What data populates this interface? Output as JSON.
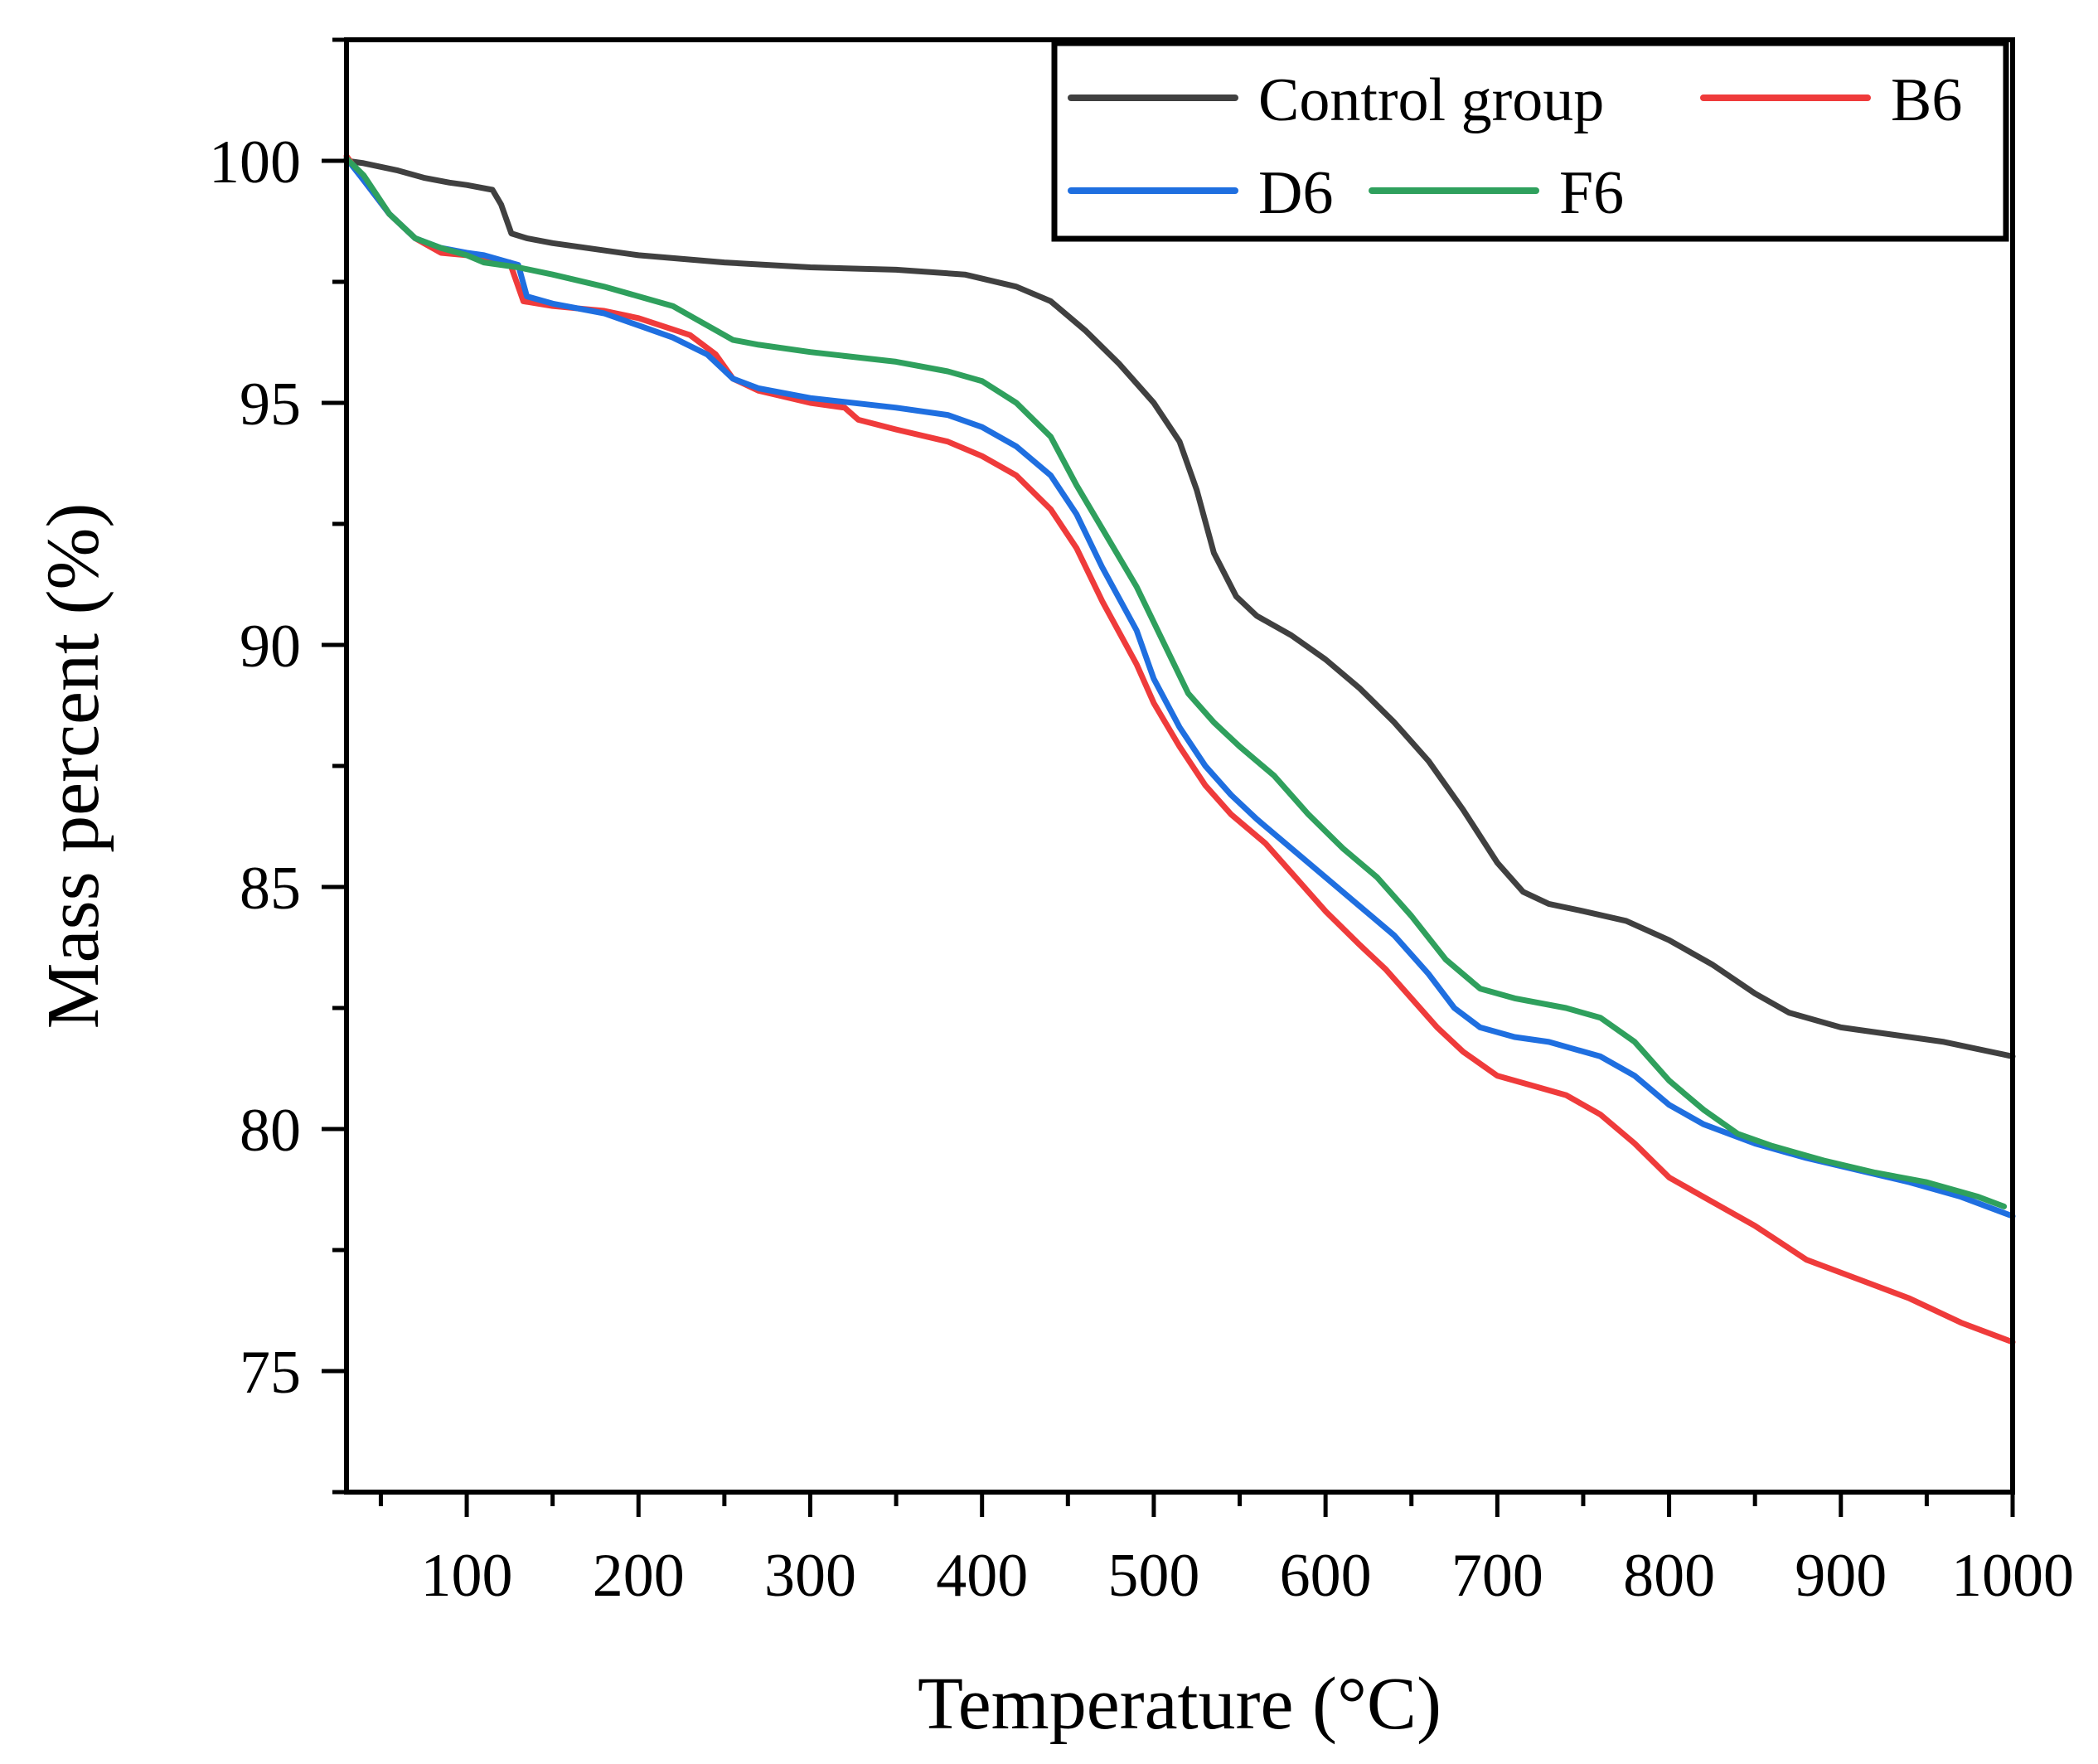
{
  "chart_data": {
    "type": "line",
    "title": "",
    "xlabel": "Temperature (°C)",
    "ylabel": "Mass percent (%)",
    "xlim": [
      30,
      1000
    ],
    "ylim": [
      72.5,
      102.5
    ],
    "xticks": [
      100,
      200,
      300,
      400,
      500,
      600,
      700,
      800,
      900,
      1000
    ],
    "xtick_labels": [
      "100",
      "200",
      "300",
      "400",
      "500",
      "600",
      "700",
      "800",
      "900",
      "1000"
    ],
    "yticks": [
      75,
      80,
      85,
      90,
      95,
      100
    ],
    "ytick_labels": [
      "75",
      "80",
      "85",
      "90",
      "95",
      "100"
    ],
    "grid": false,
    "legend_position": "top-right",
    "series": [
      {
        "name": "Control group",
        "color": "#404040",
        "points": [
          [
            30,
            100.0
          ],
          [
            40,
            99.95
          ],
          [
            60,
            99.8
          ],
          [
            75,
            99.65
          ],
          [
            90,
            99.55
          ],
          [
            100,
            99.5
          ],
          [
            115,
            99.4
          ],
          [
            120,
            99.1
          ],
          [
            126,
            98.5
          ],
          [
            135,
            98.4
          ],
          [
            150,
            98.3
          ],
          [
            200,
            98.05
          ],
          [
            250,
            97.9
          ],
          [
            300,
            97.8
          ],
          [
            350,
            97.75
          ],
          [
            390,
            97.65
          ],
          [
            420,
            97.4
          ],
          [
            440,
            97.1
          ],
          [
            460,
            96.5
          ],
          [
            480,
            95.8
          ],
          [
            500,
            95.0
          ],
          [
            515,
            94.2
          ],
          [
            525,
            93.2
          ],
          [
            535,
            91.9
          ],
          [
            548,
            91.0
          ],
          [
            560,
            90.6
          ],
          [
            580,
            90.2
          ],
          [
            600,
            89.7
          ],
          [
            620,
            89.1
          ],
          [
            640,
            88.4
          ],
          [
            660,
            87.6
          ],
          [
            680,
            86.6
          ],
          [
            700,
            85.5
          ],
          [
            715,
            84.9
          ],
          [
            730,
            84.65
          ],
          [
            750,
            84.5
          ],
          [
            775,
            84.3
          ],
          [
            800,
            83.9
          ],
          [
            825,
            83.4
          ],
          [
            850,
            82.8
          ],
          [
            870,
            82.4
          ],
          [
            900,
            82.1
          ],
          [
            930,
            81.95
          ],
          [
            960,
            81.8
          ],
          [
            1000,
            81.5
          ]
        ]
      },
      {
        "name": "B6",
        "color": "#ef3b3b",
        "points": [
          [
            30,
            100.1
          ],
          [
            40,
            99.6
          ],
          [
            55,
            98.9
          ],
          [
            70,
            98.4
          ],
          [
            85,
            98.1
          ],
          [
            100,
            98.05
          ],
          [
            110,
            97.95
          ],
          [
            125,
            97.9
          ],
          [
            133,
            97.1
          ],
          [
            150,
            97.0
          ],
          [
            180,
            96.9
          ],
          [
            200,
            96.75
          ],
          [
            230,
            96.4
          ],
          [
            245,
            96.0
          ],
          [
            255,
            95.5
          ],
          [
            270,
            95.25
          ],
          [
            300,
            95.0
          ],
          [
            320,
            94.9
          ],
          [
            328,
            94.65
          ],
          [
            350,
            94.45
          ],
          [
            380,
            94.2
          ],
          [
            400,
            93.9
          ],
          [
            420,
            93.5
          ],
          [
            440,
            92.8
          ],
          [
            455,
            92.0
          ],
          [
            470,
            90.9
          ],
          [
            490,
            89.6
          ],
          [
            500,
            88.8
          ],
          [
            515,
            87.9
          ],
          [
            530,
            87.1
          ],
          [
            545,
            86.5
          ],
          [
            565,
            85.9
          ],
          [
            580,
            85.3
          ],
          [
            600,
            84.5
          ],
          [
            620,
            83.8
          ],
          [
            635,
            83.3
          ],
          [
            650,
            82.7
          ],
          [
            665,
            82.1
          ],
          [
            680,
            81.6
          ],
          [
            700,
            81.1
          ],
          [
            720,
            80.9
          ],
          [
            740,
            80.7
          ],
          [
            760,
            80.3
          ],
          [
            780,
            79.7
          ],
          [
            800,
            79.0
          ],
          [
            820,
            78.6
          ],
          [
            850,
            78.0
          ],
          [
            880,
            77.3
          ],
          [
            910,
            76.9
          ],
          [
            940,
            76.5
          ],
          [
            970,
            76.0
          ],
          [
            1000,
            75.6
          ]
        ]
      },
      {
        "name": "D6",
        "color": "#1f6fe0",
        "points": [
          [
            30,
            100.05
          ],
          [
            40,
            99.6
          ],
          [
            55,
            98.9
          ],
          [
            70,
            98.4
          ],
          [
            85,
            98.2
          ],
          [
            100,
            98.1
          ],
          [
            110,
            98.05
          ],
          [
            120,
            97.95
          ],
          [
            130,
            97.85
          ],
          [
            135,
            97.2
          ],
          [
            150,
            97.05
          ],
          [
            180,
            96.85
          ],
          [
            200,
            96.6
          ],
          [
            220,
            96.35
          ],
          [
            240,
            96.0
          ],
          [
            255,
            95.5
          ],
          [
            270,
            95.3
          ],
          [
            300,
            95.1
          ],
          [
            350,
            94.9
          ],
          [
            380,
            94.75
          ],
          [
            400,
            94.5
          ],
          [
            420,
            94.1
          ],
          [
            440,
            93.5
          ],
          [
            455,
            92.7
          ],
          [
            470,
            91.6
          ],
          [
            490,
            90.3
          ],
          [
            500,
            89.3
          ],
          [
            515,
            88.3
          ],
          [
            530,
            87.5
          ],
          [
            545,
            86.9
          ],
          [
            560,
            86.4
          ],
          [
            580,
            85.8
          ],
          [
            600,
            85.2
          ],
          [
            620,
            84.6
          ],
          [
            640,
            84.0
          ],
          [
            660,
            83.2
          ],
          [
            675,
            82.5
          ],
          [
            690,
            82.1
          ],
          [
            710,
            81.9
          ],
          [
            730,
            81.8
          ],
          [
            760,
            81.5
          ],
          [
            780,
            81.1
          ],
          [
            800,
            80.5
          ],
          [
            820,
            80.1
          ],
          [
            850,
            79.7
          ],
          [
            880,
            79.4
          ],
          [
            910,
            79.15
          ],
          [
            940,
            78.9
          ],
          [
            970,
            78.6
          ],
          [
            1000,
            78.2
          ]
        ]
      },
      {
        "name": "F6",
        "color": "#2fa05d",
        "points": [
          [
            30,
            100.05
          ],
          [
            40,
            99.7
          ],
          [
            55,
            98.9
          ],
          [
            70,
            98.4
          ],
          [
            85,
            98.2
          ],
          [
            100,
            98.05
          ],
          [
            110,
            97.9
          ],
          [
            130,
            97.8
          ],
          [
            150,
            97.65
          ],
          [
            180,
            97.4
          ],
          [
            200,
            97.2
          ],
          [
            220,
            97.0
          ],
          [
            240,
            96.6
          ],
          [
            255,
            96.3
          ],
          [
            270,
            96.2
          ],
          [
            300,
            96.05
          ],
          [
            350,
            95.85
          ],
          [
            380,
            95.65
          ],
          [
            400,
            95.45
          ],
          [
            420,
            95.0
          ],
          [
            440,
            94.3
          ],
          [
            455,
            93.3
          ],
          [
            470,
            92.4
          ],
          [
            490,
            91.2
          ],
          [
            505,
            90.1
          ],
          [
            520,
            89.0
          ],
          [
            535,
            88.4
          ],
          [
            550,
            87.9
          ],
          [
            570,
            87.3
          ],
          [
            590,
            86.5
          ],
          [
            610,
            85.8
          ],
          [
            630,
            85.2
          ],
          [
            650,
            84.4
          ],
          [
            670,
            83.5
          ],
          [
            690,
            82.9
          ],
          [
            710,
            82.7
          ],
          [
            740,
            82.5
          ],
          [
            760,
            82.3
          ],
          [
            780,
            81.8
          ],
          [
            800,
            81.0
          ],
          [
            820,
            80.4
          ],
          [
            840,
            79.9
          ],
          [
            860,
            79.65
          ],
          [
            890,
            79.35
          ],
          [
            920,
            79.1
          ],
          [
            950,
            78.9
          ],
          [
            980,
            78.6
          ],
          [
            995,
            78.4
          ]
        ]
      }
    ]
  }
}
